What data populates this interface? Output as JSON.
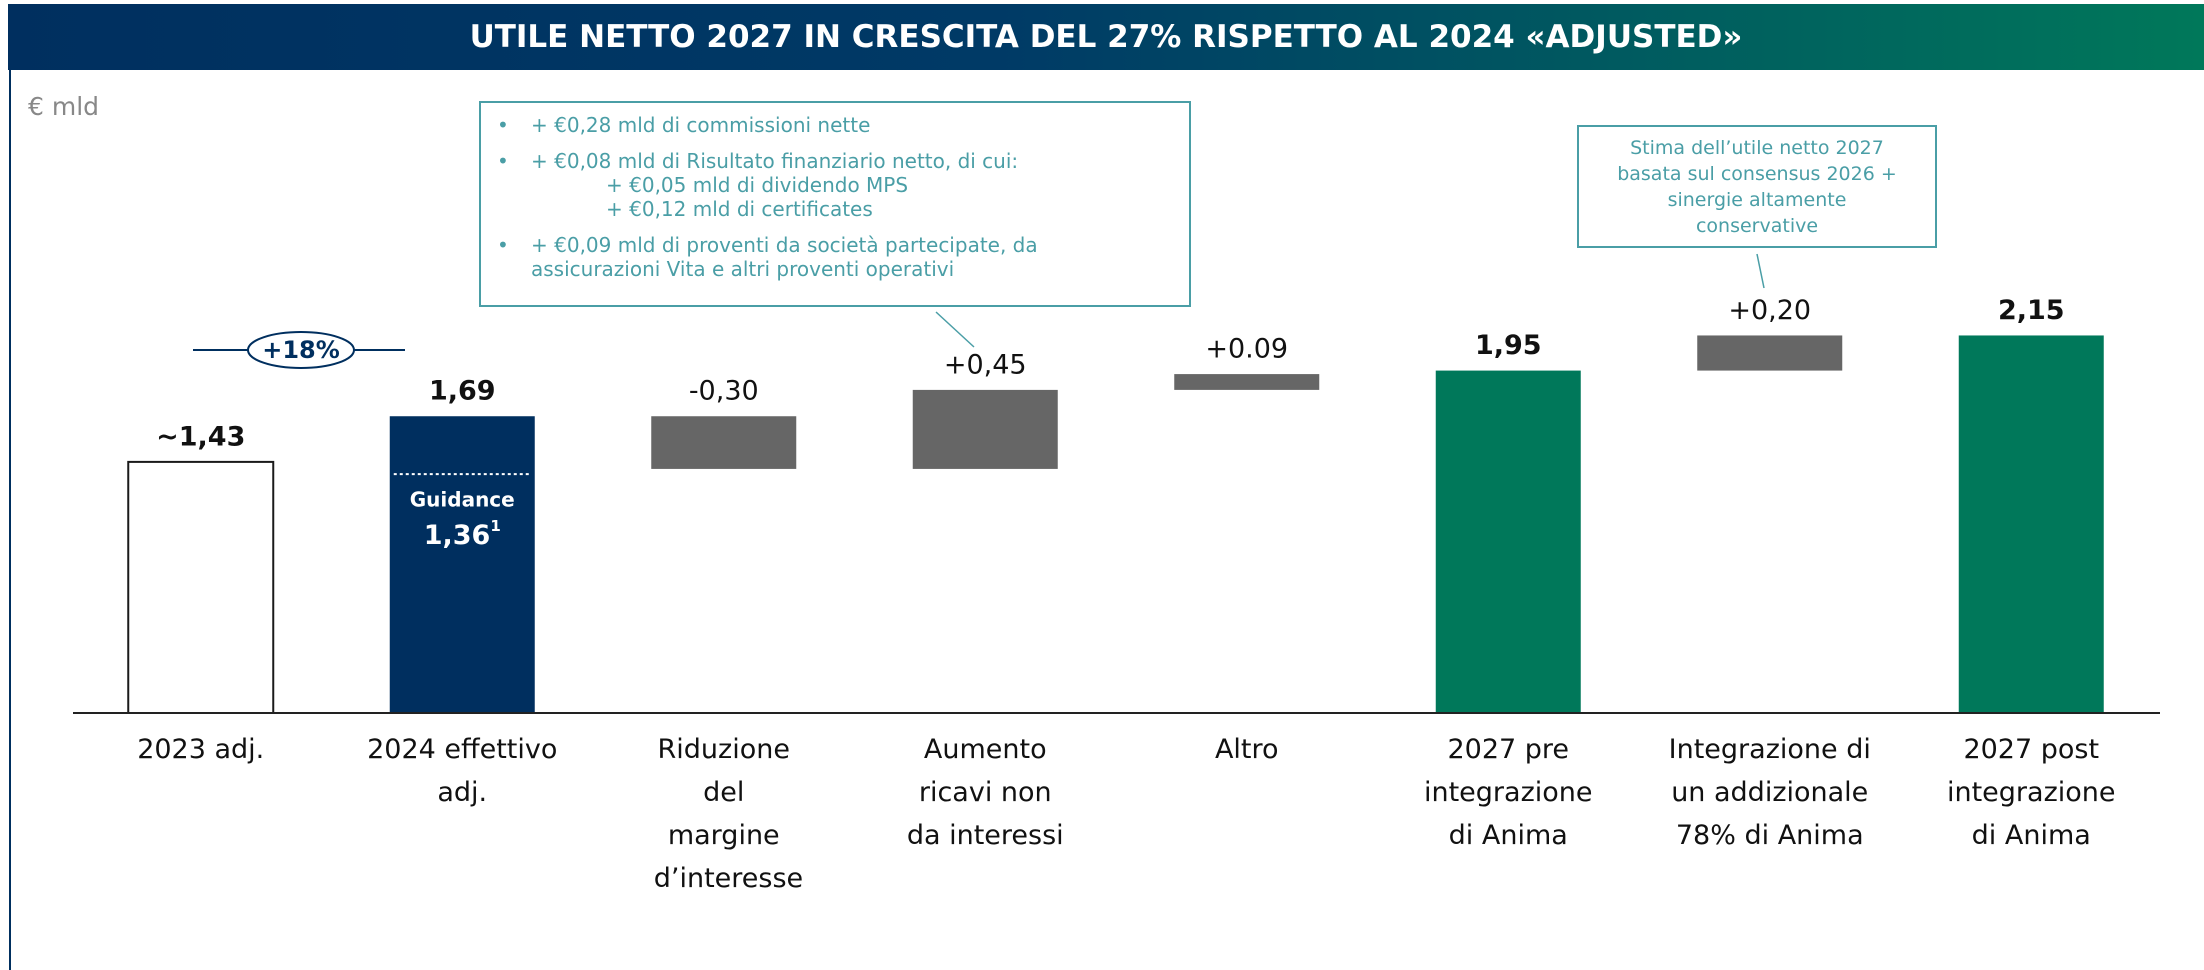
{
  "chart_data": {
    "type": "waterfall",
    "title": "UTILE NETTO 2027 IN CRESCITA DEL 27% RISPETTO AL 2024 «ADJUSTED»",
    "unit_label": "€ mld",
    "categories": [
      "2023 adj.",
      "2024 effettivo adj.",
      "Riduzione del margine d’interesse",
      "Aumento ricavi non da interessi",
      "Altro",
      "2027 pre integrazione di Anima",
      "Integrazione di un addizionale 78% di Anima",
      "2027 post integrazione di Anima"
    ],
    "kinds": [
      "total",
      "total",
      "delta",
      "delta",
      "delta",
      "total",
      "delta",
      "total"
    ],
    "values": [
      1.43,
      1.69,
      -0.3,
      0.45,
      0.09,
      1.95,
      0.2,
      2.15
    ],
    "value_labels": [
      "~1,43",
      "1,69",
      "-0,30",
      "+0,45",
      "+0.09",
      "1,95",
      "+0,20",
      "2,15"
    ],
    "colors": [
      "#ffffff",
      "#002f5f",
      "#666666",
      "#666666",
      "#666666",
      "#00785a",
      "#666666",
      "#00785a"
    ],
    "ylim": [
      0,
      2.5
    ],
    "guidance": {
      "label": "Guidance",
      "value": 1.36,
      "value_label": "1,36",
      "footnote": "1"
    },
    "growth_annotation": "+18%",
    "callout_1": {
      "items": [
        {
          "text": "+ €0,28 mld di commissioni nette"
        },
        {
          "text": "+ €0,08 mld di Risultato finanziario netto, di cui:",
          "sub": [
            "+ €0,05  mld di dividendo MPS",
            "+ €0,12 mld di certificates"
          ]
        },
        {
          "text": "+ €0,09 mld di proventi da società partecipate, da assicurazioni Vita e altri proventi operativi"
        }
      ]
    },
    "callout_2": "Stima dell’utile netto 2027 basata sul consensus 2026 + sinergie altamente conservative"
  }
}
